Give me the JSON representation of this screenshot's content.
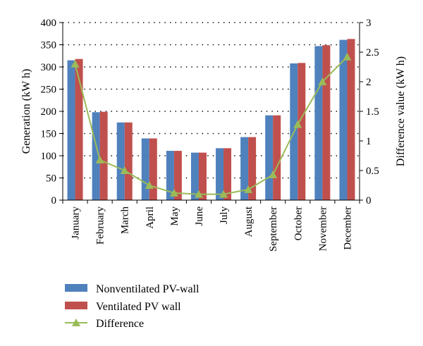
{
  "chart_data": {
    "type": "bar",
    "categories": [
      "January",
      "February",
      "March",
      "April",
      "May",
      "June",
      "July",
      "August",
      "September",
      "October",
      "November",
      "December"
    ],
    "series": [
      {
        "name": "Nonventilated PV-wall",
        "type": "bar",
        "axis": "left",
        "color": "#4F81BD",
        "values": [
          315,
          198,
          175,
          139,
          111,
          107,
          117,
          142,
          191,
          308,
          347,
          361
        ]
      },
      {
        "name": "Ventilated PV wall",
        "type": "bar",
        "axis": "left",
        "color": "#C0504D",
        "values": [
          318,
          199,
          175,
          139,
          111,
          107,
          117,
          142,
          191,
          309,
          349,
          363
        ]
      },
      {
        "name": "Difference",
        "type": "line",
        "axis": "right",
        "color": "#9BBB59",
        "values": [
          2.3,
          0.68,
          0.5,
          0.25,
          0.12,
          0.1,
          0.1,
          0.18,
          0.43,
          1.28,
          2.0,
          2.42
        ]
      }
    ],
    "ylabel": "Generation (kW h)",
    "y2label": "Difference value (kW h)",
    "ylim": [
      0,
      400
    ],
    "yticks": [
      "0",
      "50",
      "100",
      "150",
      "200",
      "250",
      "300",
      "350",
      "400"
    ],
    "y2lim": [
      0,
      3
    ],
    "y2ticks": [
      "0",
      "0.5",
      "1",
      "1.5",
      "2",
      "2.5",
      "3"
    ],
    "grid": "dotted-horizontal",
    "legend_position": "bottom-left"
  }
}
